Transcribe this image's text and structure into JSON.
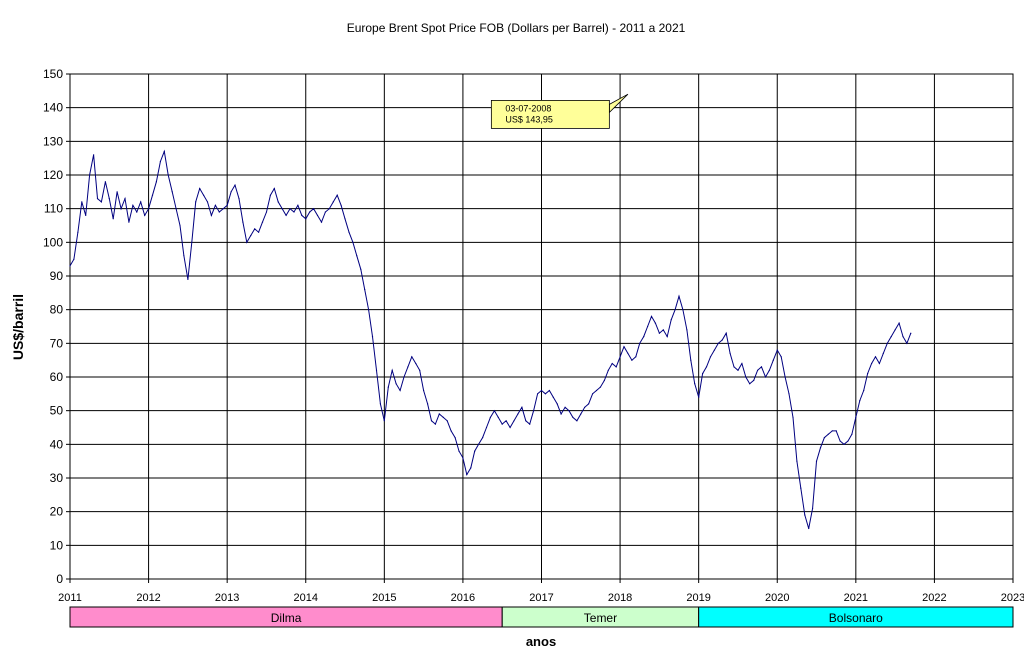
{
  "chart_data": {
    "type": "line",
    "title": "Europe Brent Spot Price FOB (Dollars per Barrel) -  2011 a 2021",
    "xlabel": "anos",
    "ylabel": "US$/barril",
    "xlim": [
      2011,
      2023
    ],
    "ylim": [
      0,
      150
    ],
    "x_ticks": [
      "2011",
      "2012",
      "2013",
      "2014",
      "2015",
      "2016",
      "2017",
      "2018",
      "2019",
      "2020",
      "2021",
      "2022",
      "2023"
    ],
    "y_ticks": [
      "0",
      "10",
      "20",
      "30",
      "40",
      "50",
      "60",
      "70",
      "80",
      "90",
      "100",
      "110",
      "120",
      "130",
      "140",
      "150"
    ],
    "grid": true,
    "series": [
      {
        "color": "#000080",
        "x": [
          2011.0,
          2011.05,
          2011.1,
          2011.15,
          2011.2,
          2011.25,
          2011.3,
          2011.35,
          2011.4,
          2011.45,
          2011.5,
          2011.55,
          2011.6,
          2011.65,
          2011.7,
          2011.75,
          2011.8,
          2011.85,
          2011.9,
          2011.95,
          2012.0,
          2012.05,
          2012.1,
          2012.15,
          2012.2,
          2012.25,
          2012.3,
          2012.35,
          2012.4,
          2012.45,
          2012.5,
          2012.55,
          2012.6,
          2012.65,
          2012.7,
          2012.75,
          2012.8,
          2012.85,
          2012.9,
          2012.95,
          2013.0,
          2013.05,
          2013.1,
          2013.15,
          2013.2,
          2013.25,
          2013.3,
          2013.35,
          2013.4,
          2013.45,
          2013.5,
          2013.55,
          2013.6,
          2013.65,
          2013.7,
          2013.75,
          2013.8,
          2013.85,
          2013.9,
          2013.95,
          2014.0,
          2014.05,
          2014.1,
          2014.15,
          2014.2,
          2014.25,
          2014.3,
          2014.35,
          2014.4,
          2014.45,
          2014.5,
          2014.55,
          2014.6,
          2014.65,
          2014.7,
          2014.75,
          2014.8,
          2014.85,
          2014.9,
          2014.95,
          2015.0,
          2015.05,
          2015.1,
          2015.15,
          2015.2,
          2015.25,
          2015.3,
          2015.35,
          2015.4,
          2015.45,
          2015.5,
          2015.55,
          2015.6,
          2015.65,
          2015.7,
          2015.75,
          2015.8,
          2015.85,
          2015.9,
          2015.95,
          2016.0,
          2016.05,
          2016.1,
          2016.15,
          2016.2,
          2016.25,
          2016.3,
          2016.35,
          2016.4,
          2016.45,
          2016.5,
          2016.55,
          2016.6,
          2016.65,
          2016.7,
          2016.75,
          2016.8,
          2016.85,
          2016.9,
          2016.95,
          2017.0,
          2017.05,
          2017.1,
          2017.15,
          2017.2,
          2017.25,
          2017.3,
          2017.35,
          2017.4,
          2017.45,
          2017.5,
          2017.55,
          2017.6,
          2017.65,
          2017.7,
          2017.75,
          2017.8,
          2017.85,
          2017.9,
          2017.95,
          2018.0,
          2018.05,
          2018.1,
          2018.15,
          2018.2,
          2018.25,
          2018.3,
          2018.35,
          2018.4,
          2018.45,
          2018.5,
          2018.55,
          2018.6,
          2018.65,
          2018.7,
          2018.75,
          2018.8,
          2018.85,
          2018.9,
          2018.95,
          2019.0,
          2019.05,
          2019.1,
          2019.15,
          2019.2,
          2019.25,
          2019.3,
          2019.35,
          2019.4,
          2019.45,
          2019.5,
          2019.55,
          2019.6,
          2019.65,
          2019.7,
          2019.75,
          2019.8,
          2019.85,
          2019.9,
          2019.95,
          2020.0,
          2020.05,
          2020.1,
          2020.15,
          2020.2,
          2020.25,
          2020.3,
          2020.35,
          2020.4,
          2020.45,
          2020.5,
          2020.55,
          2020.6,
          2020.65,
          2020.7,
          2020.75,
          2020.8,
          2020.85,
          2020.9,
          2020.95,
          2021.0,
          2021.05,
          2021.1,
          2021.15,
          2021.2,
          2021.25,
          2021.3,
          2021.35,
          2021.4,
          2021.45,
          2021.5,
          2021.55,
          2021.6,
          2021.65,
          2021.7
        ],
        "y": [
          93,
          95,
          103,
          112,
          108,
          120,
          126,
          113,
          112,
          118,
          113,
          107,
          115,
          110,
          113,
          106,
          111,
          109,
          112,
          108,
          110,
          114,
          118,
          124,
          127,
          120,
          115,
          110,
          105,
          96,
          89,
          100,
          112,
          116,
          114,
          112,
          108,
          111,
          109,
          110,
          111,
          115,
          117,
          113,
          106,
          100,
          102,
          104,
          103,
          106,
          109,
          114,
          116,
          112,
          110,
          108,
          110,
          109,
          111,
          108,
          107,
          109,
          110,
          108,
          106,
          109,
          110,
          112,
          114,
          111,
          107,
          103,
          100,
          96,
          92,
          86,
          80,
          72,
          62,
          52,
          47,
          57,
          62,
          58,
          56,
          60,
          63,
          66,
          64,
          62,
          56,
          52,
          47,
          46,
          49,
          48,
          47,
          44,
          42,
          38,
          36,
          31,
          33,
          38,
          40,
          42,
          45,
          48,
          50,
          48,
          46,
          47,
          45,
          47,
          49,
          51,
          47,
          46,
          50,
          55,
          56,
          55,
          56,
          54,
          52,
          49,
          51,
          50,
          48,
          47,
          49,
          51,
          52,
          55,
          56,
          57,
          59,
          62,
          64,
          63,
          66,
          69,
          67,
          65,
          66,
          70,
          72,
          75,
          78,
          76,
          73,
          74,
          72,
          77,
          80,
          84,
          80,
          74,
          65,
          58,
          54,
          61,
          63,
          66,
          68,
          70,
          71,
          73,
          67,
          63,
          62,
          64,
          60,
          58,
          59,
          62,
          63,
          60,
          62,
          65,
          68,
          66,
          60,
          55,
          48,
          35,
          27,
          19,
          15,
          21,
          35,
          39,
          42,
          43,
          44,
          44,
          41,
          40,
          41,
          43,
          48,
          53,
          56,
          61,
          64,
          66,
          64,
          67,
          70,
          72,
          74,
          76,
          72,
          70,
          73
        ]
      }
    ],
    "annotations": [
      {
        "lines": [
          "03-07-2008",
          "US$ 143,95"
        ],
        "color": "#ffff99",
        "text_x": 2017.1,
        "text_y": 138,
        "arrow_x": 2018.1,
        "arrow_y": 144
      }
    ],
    "periods": [
      {
        "label": "Dilma",
        "start": 2011,
        "end": 2016.5,
        "color": "#ff8ccc"
      },
      {
        "label": "Temer",
        "start": 2016.5,
        "end": 2019,
        "color": "#ccffcc"
      },
      {
        "label": "Bolsonaro",
        "start": 2019,
        "end": 2023,
        "color": "#00ffff"
      }
    ]
  }
}
